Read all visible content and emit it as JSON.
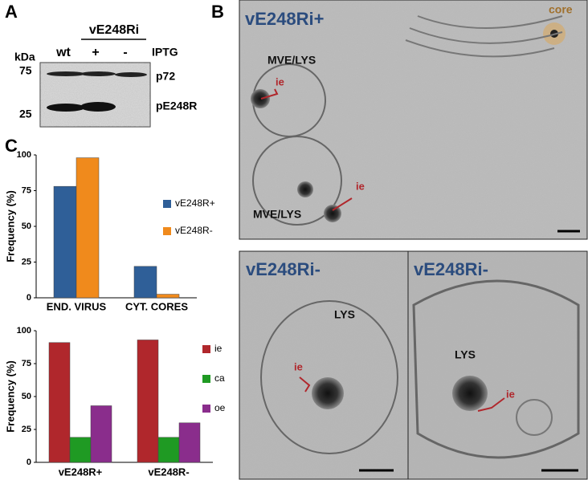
{
  "panel_labels": [
    "A",
    "B",
    "C"
  ],
  "blot": {
    "kda_label": "kDa",
    "markers": [
      "75",
      "25"
    ],
    "group_label": "vE248Ri",
    "lanes": [
      "wt",
      "+",
      "-"
    ],
    "iptg_label": "IPTG",
    "bands": [
      "p72",
      "pE248R"
    ]
  },
  "micrographs": [
    {
      "title": "vE248Ri+",
      "labels": [
        "core",
        "MVE/LYS",
        "ie",
        "ie",
        "MVE/LYS"
      ]
    },
    {
      "title": "vE248Ri-",
      "labels": [
        "LYS",
        "ie"
      ]
    },
    {
      "title": "vE248Ri-",
      "labels": [
        "LYS",
        "ie"
      ]
    }
  ],
  "chart_data": [
    {
      "type": "bar",
      "y_label": "Frequency (%)",
      "categories": [
        "END. VIRUS",
        "CYT. CORES"
      ],
      "series": [
        {
          "name": "vE248R+",
          "color": "#2f5f98",
          "values": [
            78,
            22
          ]
        },
        {
          "name": "vE248R-",
          "color": "#f08a1c",
          "values": [
            98,
            2.5
          ]
        }
      ],
      "ylim": [
        0,
        100
      ],
      "yticks": [
        0,
        25,
        50,
        75,
        100
      ],
      "grid": false,
      "legend": "right"
    },
    {
      "type": "bar",
      "y_label": "Frequency (%)",
      "categories": [
        "vE248R+",
        "vE248R-"
      ],
      "series": [
        {
          "name": "ie",
          "color": "#b0272c",
          "values": [
            91,
            93
          ]
        },
        {
          "name": "ca",
          "color": "#1f9a23",
          "values": [
            19,
            19
          ]
        },
        {
          "name": "oe",
          "color": "#8a2d8c",
          "values": [
            43,
            30
          ]
        }
      ],
      "ylim": [
        0,
        100
      ],
      "yticks": [
        0,
        25,
        50,
        75,
        100
      ],
      "grid": false,
      "legend": "right"
    }
  ]
}
